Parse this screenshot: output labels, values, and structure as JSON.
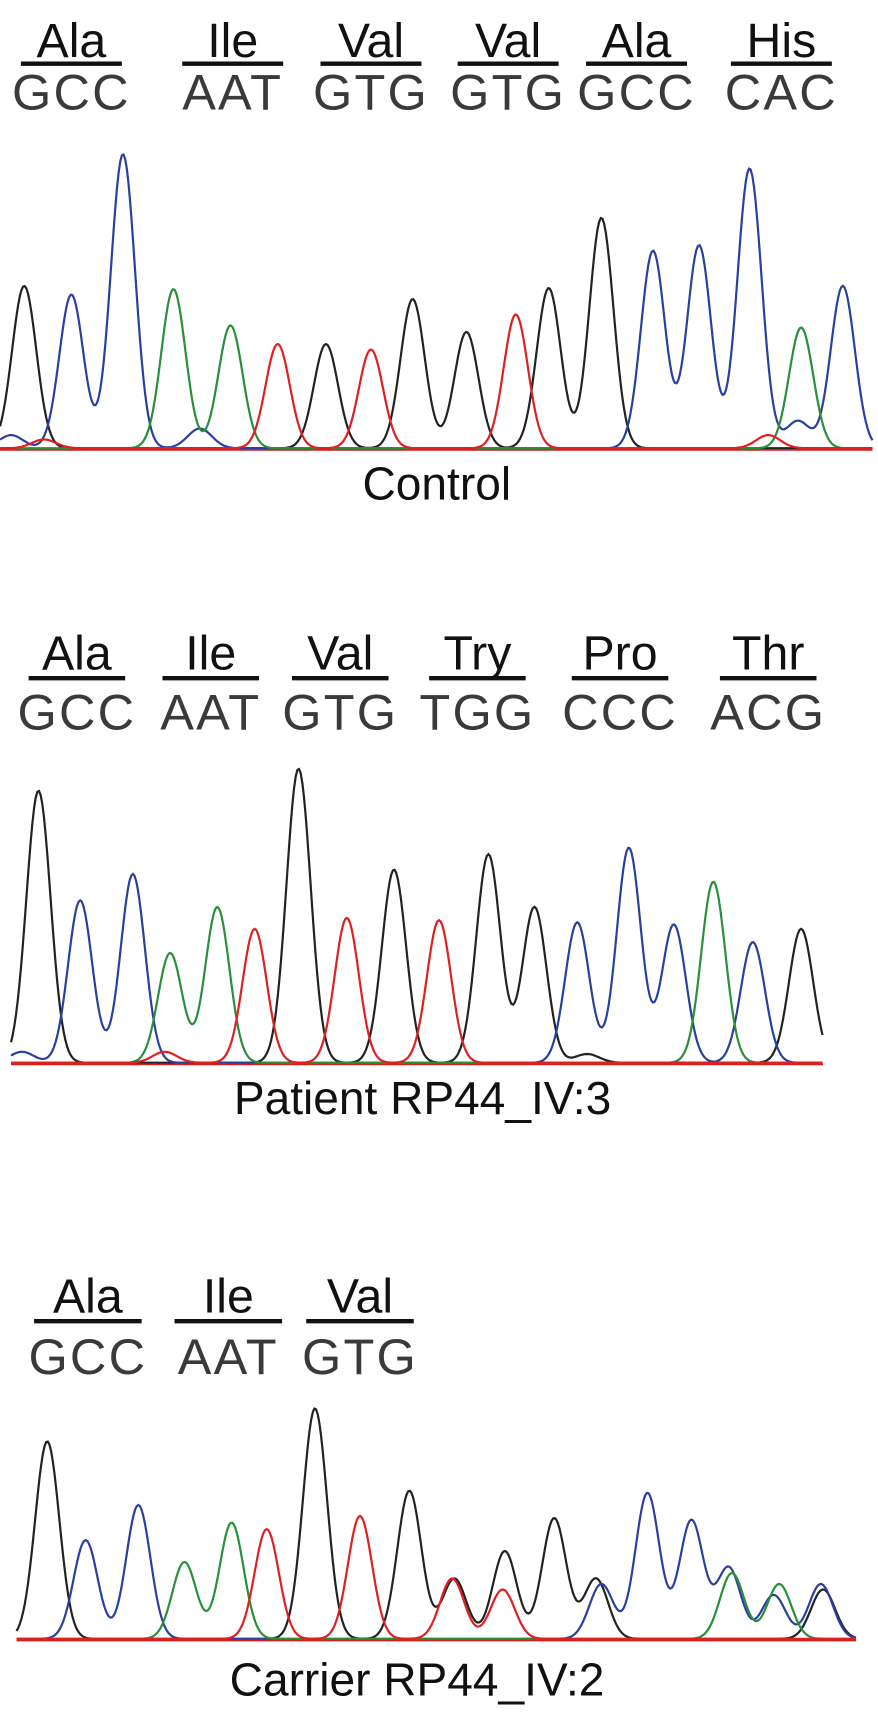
{
  "panels": [
    {
      "codons": [
        {
          "amino_acid": "Ala",
          "triplet": "GCC"
        },
        {
          "amino_acid": "Ile",
          "triplet": "AAT"
        },
        {
          "amino_acid": "Val",
          "triplet": "GTG"
        },
        {
          "amino_acid": "Val",
          "triplet": "GTG"
        },
        {
          "amino_acid": "Ala",
          "triplet": "GCC"
        },
        {
          "amino_acid": "His",
          "triplet": "CAC"
        }
      ],
      "label": "Control"
    },
    {
      "codons": [
        {
          "amino_acid": "Ala",
          "triplet": "GCC"
        },
        {
          "amino_acid": "Ile",
          "triplet": "AAT"
        },
        {
          "amino_acid": "Val",
          "triplet": "GTG"
        },
        {
          "amino_acid": "Try",
          "triplet": "TGG"
        },
        {
          "amino_acid": "Pro",
          "triplet": "CCC"
        },
        {
          "amino_acid": "Thr",
          "triplet": "ACG"
        }
      ],
      "label": "Patient RP44_IV:3"
    },
    {
      "codons": [
        {
          "amino_acid": "Ala",
          "triplet": "GCC"
        },
        {
          "amino_acid": "Ile",
          "triplet": "AAT"
        },
        {
          "amino_acid": "Val",
          "triplet": "GTG"
        }
      ],
      "label": "Carrier RP44_IV:2"
    }
  ]
}
